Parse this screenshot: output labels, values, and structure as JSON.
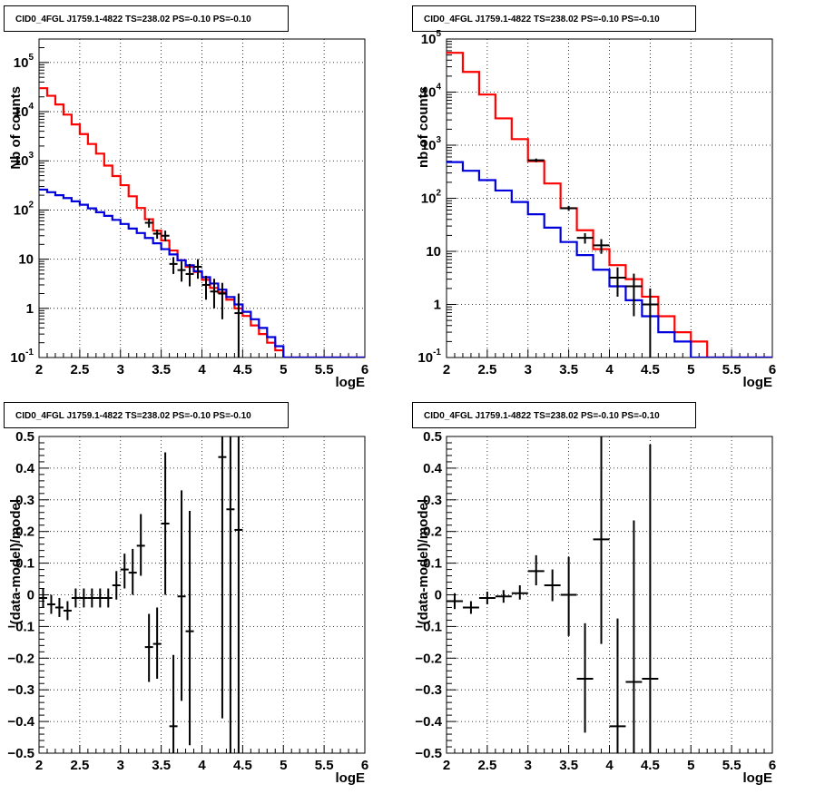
{
  "colors": {
    "data": "#000000",
    "total_model": "#ff0000",
    "component_model": "#0000dd"
  },
  "chart_data": [
    {
      "type": "line",
      "title": "CID0_4FGL J1759.1-4822 TS=238.02 PS=-0.10 PS=-0.10",
      "xlabel": "logE",
      "ylabel": "Nb of counts",
      "xlim": [
        2,
        6
      ],
      "ylim": [
        0.1,
        300000
      ],
      "yscale": "log",
      "grid": true,
      "xticks": [
        2,
        2.5,
        3,
        3.5,
        4,
        4.5,
        5,
        5.5,
        6
      ],
      "xtick_labels": [
        "2",
        "2.5",
        "3",
        "3.5",
        "4",
        "4.5",
        "5",
        "5.5",
        "6"
      ],
      "yticks": [
        0.1,
        1,
        10,
        100,
        1000,
        10000,
        100000
      ],
      "ytick_labels": [
        [
          "10",
          "-1"
        ],
        [
          "1",
          ""
        ],
        [
          "10",
          ""
        ],
        [
          "10",
          "2"
        ],
        [
          "10",
          "3"
        ],
        [
          "10",
          "4"
        ],
        [
          "10",
          "5"
        ]
      ],
      "bin_edges": [
        2,
        2.1,
        2.2,
        2.3,
        2.4,
        2.5,
        2.6,
        2.7,
        2.8,
        2.9,
        3,
        3.1,
        3.2,
        3.3,
        3.4,
        3.5,
        3.6,
        3.7,
        3.8,
        3.9,
        4,
        4.1,
        4.2,
        4.3,
        4.4,
        4.5,
        4.6,
        4.7,
        4.8,
        4.9,
        5,
        5.1,
        5.2,
        5.3,
        5.4,
        5.5,
        5.6,
        5.7,
        5.8,
        5.9,
        6
      ],
      "series": [
        {
          "role": "total_model",
          "style": "step",
          "values": [
            30000,
            21000,
            14000,
            8700,
            5500,
            3500,
            2200,
            1400,
            800,
            490,
            320,
            190,
            110,
            65,
            38,
            24,
            15,
            9.5,
            7,
            5.5,
            3.8,
            2.6,
            2.1,
            1.5,
            1.0,
            0.7,
            0.45,
            0.3,
            0.2,
            0.14,
            0.1,
            0.1,
            0.1,
            0.1,
            0.1,
            0.1,
            0.1,
            0.1,
            0.1,
            0.1
          ]
        },
        {
          "role": "component_model",
          "style": "step",
          "values": [
            260,
            230,
            200,
            175,
            150,
            128,
            108,
            90,
            76,
            63,
            52,
            42,
            34,
            27,
            21,
            16,
            12.5,
            9.5,
            7.5,
            5.7,
            4.3,
            3.2,
            2.4,
            1.7,
            1.2,
            0.85,
            0.6,
            0.4,
            0.26,
            0.17,
            0.1,
            0.1,
            0.1,
            0.1,
            0.1,
            0.1,
            0.1,
            0.1,
            0.1,
            0.1
          ]
        },
        {
          "role": "data",
          "style": "errorbar",
          "x": [
            3.35,
            3.45,
            3.55,
            3.65,
            3.75,
            3.85,
            3.95,
            4.05,
            4.15,
            4.25,
            4.45
          ],
          "y": [
            55,
            33,
            30,
            8,
            6,
            5,
            7,
            3,
            2.2,
            2,
            0.8
          ],
          "ylo": [
            44,
            26,
            23,
            5,
            3.5,
            2.8,
            4,
            1.5,
            1,
            0.6,
            0.1
          ],
          "yhi": [
            67,
            40,
            38,
            11,
            9,
            8,
            10,
            4.6,
            4,
            3.3,
            2
          ]
        }
      ]
    },
    {
      "type": "line",
      "title": "CID0_4FGL J1759.1-4822 TS=238.02 PS=-0.10 PS=-0.10",
      "xlabel": "logE",
      "ylabel": "nb of counts",
      "xlim": [
        2,
        6
      ],
      "ylim": [
        0.1,
        100000
      ],
      "yscale": "log",
      "grid": true,
      "xticks": [
        2,
        2.5,
        3,
        3.5,
        4,
        4.5,
        5,
        5.5,
        6
      ],
      "xtick_labels": [
        "2",
        "2.5",
        "3",
        "3.5",
        "4",
        "4.5",
        "5",
        "5.5",
        "6"
      ],
      "yticks": [
        0.1,
        1,
        10,
        100,
        1000,
        10000,
        100000
      ],
      "ytick_labels": [
        [
          "10",
          "-1"
        ],
        [
          "1",
          ""
        ],
        [
          "10",
          ""
        ],
        [
          "10",
          "2"
        ],
        [
          "10",
          "3"
        ],
        [
          "10",
          "4"
        ],
        [
          "10",
          "5"
        ]
      ],
      "bin_edges": [
        2,
        2.2,
        2.4,
        2.6,
        2.8,
        3,
        3.2,
        3.4,
        3.6,
        3.8,
        4,
        4.2,
        4.4,
        4.6,
        4.8,
        5,
        5.2,
        5.4,
        5.6,
        5.8,
        6
      ],
      "series": [
        {
          "role": "total_model",
          "style": "step",
          "values": [
            55000,
            24000,
            9000,
            3200,
            1300,
            500,
            190,
            65,
            25,
            11,
            5.5,
            3.0,
            1.4,
            0.6,
            0.3,
            0.2,
            0.1,
            0.1,
            0.1,
            0.1
          ]
        },
        {
          "role": "component_model",
          "style": "step",
          "values": [
            480,
            330,
            220,
            140,
            85,
            50,
            28,
            15,
            8.5,
            4.5,
            2.2,
            1.2,
            0.6,
            0.3,
            0.2,
            0.1,
            0.1,
            0.1,
            0.1,
            0.1
          ]
        },
        {
          "role": "data",
          "style": "errorbar",
          "x": [
            3.1,
            3.5,
            3.7,
            3.9,
            4.1,
            4.3,
            4.5
          ],
          "y": [
            520,
            65,
            18,
            13,
            3.2,
            2.2,
            1.0
          ],
          "ylo": [
            480,
            58,
            14,
            9,
            1.4,
            0.6,
            0.1
          ],
          "yhi": [
            560,
            72,
            22,
            17,
            5,
            3.8,
            2
          ]
        }
      ]
    },
    {
      "type": "scatter",
      "title": "CID0_4FGL J1759.1-4822 TS=238.02 PS=-0.10 PS=-0.10",
      "xlabel": "logE",
      "ylabel": "(data-model)/model",
      "xlim": [
        2,
        6
      ],
      "ylim": [
        -0.5,
        0.5
      ],
      "grid": true,
      "xticks": [
        2,
        2.5,
        3,
        3.5,
        4,
        4.5,
        5,
        5.5,
        6
      ],
      "xtick_labels": [
        "2",
        "2.5",
        "3",
        "3.5",
        "4",
        "4.5",
        "5",
        "5.5",
        "6"
      ],
      "yticks": [
        -0.5,
        -0.4,
        -0.3,
        -0.2,
        -0.1,
        0,
        0.1,
        0.2,
        0.3,
        0.4,
        0.5
      ],
      "ytick_labels": [
        "−0.5",
        "−0.4",
        "−0.3",
        "−0.2",
        "−0.1",
        "0",
        "0.1",
        "0.2",
        "0.3",
        "0.4",
        "0.5"
      ],
      "xerr": 0.05,
      "series": [
        {
          "role": "data",
          "style": "errorbar",
          "x": [
            2.05,
            2.15,
            2.25,
            2.35,
            2.45,
            2.55,
            2.65,
            2.75,
            2.85,
            2.95,
            3.05,
            3.15,
            3.25,
            3.35,
            3.45,
            3.55,
            3.65,
            3.75,
            3.85,
            4.25,
            4.35,
            4.45
          ],
          "y": [
            -0.01,
            -0.03,
            -0.04,
            -0.05,
            -0.01,
            -0.01,
            -0.01,
            -0.01,
            -0.01,
            0.03,
            0.08,
            0.07,
            0.155,
            -0.165,
            -0.155,
            0.225,
            -0.415,
            -0.005,
            -0.115,
            0.435,
            0.27,
            0.205
          ],
          "ylo": [
            -0.04,
            -0.06,
            -0.07,
            -0.08,
            -0.04,
            -0.04,
            -0.04,
            -0.04,
            -0.04,
            -0.015,
            0.02,
            0.0,
            0.06,
            -0.275,
            -0.265,
            0.0,
            -0.5,
            -0.335,
            -0.475,
            -0.39,
            -0.5,
            -0.5
          ],
          "yhi": [
            0.02,
            0.0,
            -0.01,
            -0.02,
            0.02,
            0.02,
            0.02,
            0.02,
            0.02,
            0.075,
            0.13,
            0.145,
            0.255,
            -0.06,
            -0.04,
            0.45,
            -0.19,
            0.33,
            0.265,
            0.5,
            0.5,
            0.5
          ]
        }
      ]
    },
    {
      "type": "scatter",
      "title": "CID0_4FGL J1759.1-4822 TS=238.02 PS=-0.10 PS=-0.10",
      "xlabel": "logE",
      "ylabel": "(data-model)/model",
      "xlim": [
        2,
        6
      ],
      "ylim": [
        -0.5,
        0.5
      ],
      "grid": true,
      "xticks": [
        2,
        2.5,
        3,
        3.5,
        4,
        4.5,
        5,
        5.5,
        6
      ],
      "xtick_labels": [
        "2",
        "2.5",
        "3",
        "3.5",
        "4",
        "4.5",
        "5",
        "5.5",
        "6"
      ],
      "yticks": [
        -0.5,
        -0.4,
        -0.3,
        -0.2,
        -0.1,
        0,
        0.1,
        0.2,
        0.3,
        0.4,
        0.5
      ],
      "ytick_labels": [
        "−0.5",
        "−0.4",
        "−0.3",
        "−0.2",
        "−0.1",
        "0",
        "0.1",
        "0.2",
        "0.3",
        "0.4",
        "0.5"
      ],
      "xerr": 0.1,
      "series": [
        {
          "role": "data",
          "style": "errorbar",
          "x": [
            2.1,
            2.3,
            2.5,
            2.7,
            2.9,
            3.1,
            3.3,
            3.5,
            3.7,
            3.9,
            4.1,
            4.3,
            4.5
          ],
          "y": [
            -0.02,
            -0.04,
            -0.01,
            -0.005,
            0.005,
            0.075,
            0.03,
            0.0,
            -0.265,
            0.175,
            -0.415,
            -0.275,
            -0.265
          ],
          "ylo": [
            -0.045,
            -0.06,
            -0.03,
            -0.025,
            -0.015,
            0.03,
            -0.02,
            -0.13,
            -0.435,
            -0.155,
            -0.5,
            -0.5,
            -0.5
          ],
          "yhi": [
            0.005,
            -0.02,
            0.01,
            0.015,
            0.03,
            0.125,
            0.08,
            0.12,
            -0.09,
            0.5,
            -0.075,
            0.235,
            0.475
          ]
        }
      ]
    }
  ]
}
